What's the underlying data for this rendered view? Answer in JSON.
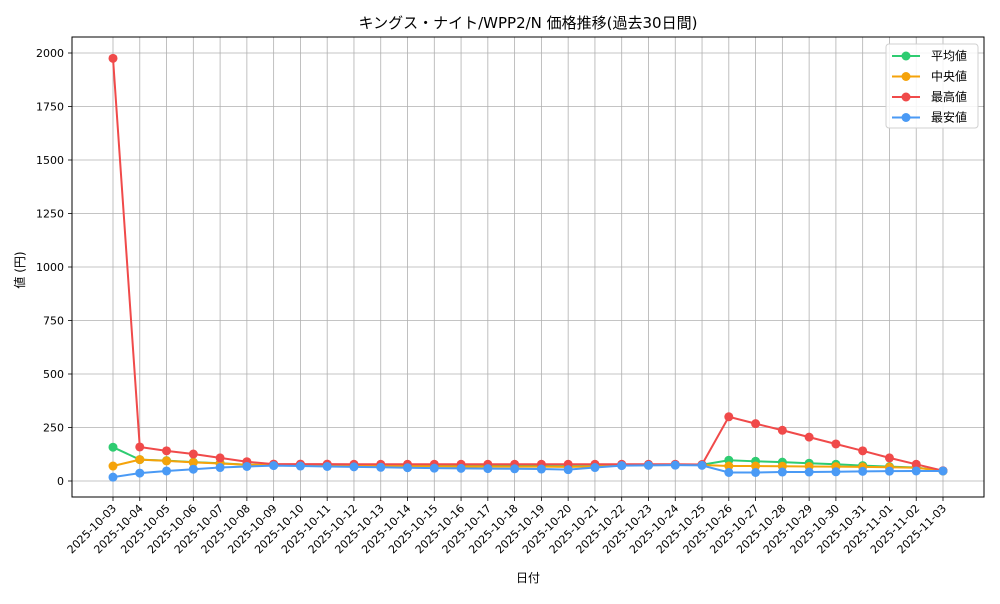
{
  "chart_data": {
    "type": "line",
    "title": "キングス・ナイト/WPP2/N 価格推移(過去30日間)",
    "xlabel": "日付",
    "ylabel": "値 (円)",
    "ylim": [
      -70,
      2070
    ],
    "yticks": [
      0,
      250,
      500,
      750,
      1000,
      1250,
      1500,
      1750,
      2000
    ],
    "grid": true,
    "legend_position": "upper right",
    "categories": [
      "2025-10-03",
      "2025-10-04",
      "2025-10-05",
      "2025-10-06",
      "2025-10-07",
      "2025-10-08",
      "2025-10-09",
      "2025-10-10",
      "2025-10-11",
      "2025-10-12",
      "2025-10-13",
      "2025-10-14",
      "2025-10-15",
      "2025-10-16",
      "2025-10-17",
      "2025-10-18",
      "2025-10-19",
      "2025-10-20",
      "2025-10-21",
      "2025-10-22",
      "2025-10-23",
      "2025-10-24",
      "2025-10-25",
      "2025-10-26",
      "2025-10-27",
      "2025-10-28",
      "2025-10-29",
      "2025-10-30",
      "2025-10-31",
      "2025-11-01",
      "2025-11-02",
      "2025-11-03"
    ],
    "series": [
      {
        "name": "平均値",
        "color": "#2ecc71",
        "values": [
          158,
          100,
          95,
          88,
          83,
          76,
          75,
          74,
          73,
          73,
          72,
          72,
          71,
          71,
          70,
          70,
          70,
          69,
          70,
          74,
          75,
          76,
          76,
          97,
          92,
          88,
          83,
          78,
          72,
          67,
          63,
          47
        ]
      },
      {
        "name": "中央値",
        "color": "#f5a30a",
        "values": [
          70,
          100,
          94,
          87,
          82,
          76,
          75,
          73,
          72,
          71,
          70,
          70,
          69,
          68,
          68,
          67,
          67,
          66,
          68,
          73,
          74,
          75,
          75,
          70,
          70,
          69,
          68,
          67,
          66,
          64,
          62,
          47
        ]
      },
      {
        "name": "最高値",
        "color": "#f04a4a",
        "values": [
          1975,
          159,
          141,
          126,
          108,
          90,
          79,
          79,
          79,
          78,
          78,
          78,
          78,
          78,
          78,
          78,
          78,
          78,
          78,
          78,
          78,
          78,
          77,
          300,
          268,
          237,
          205,
          173,
          141,
          108,
          78,
          48
        ]
      },
      {
        "name": "最安値",
        "color": "#4a9af5",
        "values": [
          18,
          37,
          47,
          55,
          63,
          68,
          72,
          70,
          68,
          66,
          64,
          62,
          60,
          59,
          58,
          57,
          56,
          53,
          63,
          72,
          73,
          74,
          73,
          40,
          40,
          42,
          42,
          43,
          45,
          46,
          47,
          47
        ]
      }
    ]
  },
  "legend": {
    "items": [
      "平均値",
      "中央値",
      "最高値",
      "最安値"
    ]
  }
}
